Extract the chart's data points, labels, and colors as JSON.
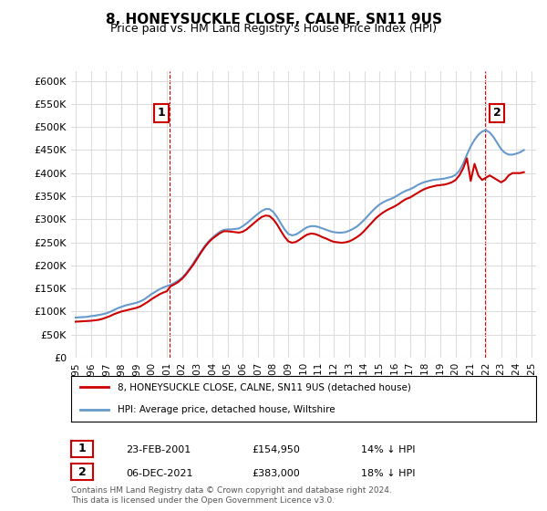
{
  "title": "8, HONEYSUCKLE CLOSE, CALNE, SN11 9US",
  "subtitle": "Price paid vs. HM Land Registry's House Price Index (HPI)",
  "xlabel": "",
  "ylabel": "",
  "ylim": [
    0,
    620000
  ],
  "yticks": [
    0,
    50000,
    100000,
    150000,
    200000,
    250000,
    300000,
    350000,
    400000,
    450000,
    500000,
    550000,
    600000
  ],
  "ytick_labels": [
    "£0",
    "£50K",
    "£100K",
    "£150K",
    "£200K",
    "£250K",
    "£300K",
    "£350K",
    "£400K",
    "£450K",
    "£500K",
    "£550K",
    "£600K"
  ],
  "hpi_color": "#6699cc",
  "price_color": "#cc0000",
  "annotation_color": "#cc0000",
  "marker1_date": 2001.15,
  "marker1_price": 154950,
  "marker1_label": "1",
  "marker2_date": 2021.92,
  "marker2_price": 383000,
  "marker2_label": "2",
  "legend_entry1": "8, HONEYSUCKLE CLOSE, CALNE, SN11 9US (detached house)",
  "legend_entry2": "HPI: Average price, detached house, Wiltshire",
  "table_row1": [
    "1",
    "23-FEB-2001",
    "£154,950",
    "14% ↓ HPI"
  ],
  "table_row2": [
    "2",
    "06-DEC-2021",
    "£383,000",
    "18% ↓ HPI"
  ],
  "footnote": "Contains HM Land Registry data © Crown copyright and database right 2024.\nThis data is licensed under the Open Government Licence v3.0.",
  "background_color": "#ffffff",
  "grid_color": "#dddddd",
  "hpi_data_x": [
    1995,
    1995.25,
    1995.5,
    1995.75,
    1996,
    1996.25,
    1996.5,
    1996.75,
    1997,
    1997.25,
    1997.5,
    1997.75,
    1998,
    1998.25,
    1998.5,
    1998.75,
    1999,
    1999.25,
    1999.5,
    1999.75,
    2000,
    2000.25,
    2000.5,
    2000.75,
    2001,
    2001.25,
    2001.5,
    2001.75,
    2002,
    2002.25,
    2002.5,
    2002.75,
    2003,
    2003.25,
    2003.5,
    2003.75,
    2004,
    2004.25,
    2004.5,
    2004.75,
    2005,
    2005.25,
    2005.5,
    2005.75,
    2006,
    2006.25,
    2006.5,
    2006.75,
    2007,
    2007.25,
    2007.5,
    2007.75,
    2008,
    2008.25,
    2008.5,
    2008.75,
    2009,
    2009.25,
    2009.5,
    2009.75,
    2010,
    2010.25,
    2010.5,
    2010.75,
    2011,
    2011.25,
    2011.5,
    2011.75,
    2012,
    2012.25,
    2012.5,
    2012.75,
    2013,
    2013.25,
    2013.5,
    2013.75,
    2014,
    2014.25,
    2014.5,
    2014.75,
    2015,
    2015.25,
    2015.5,
    2015.75,
    2016,
    2016.25,
    2016.5,
    2016.75,
    2017,
    2017.25,
    2017.5,
    2017.75,
    2018,
    2018.25,
    2018.5,
    2018.75,
    2019,
    2019.25,
    2019.5,
    2019.75,
    2020,
    2020.25,
    2020.5,
    2020.75,
    2021,
    2021.25,
    2021.5,
    2021.75,
    2022,
    2022.25,
    2022.5,
    2022.75,
    2023,
    2023.25,
    2023.5,
    2023.75,
    2024,
    2024.25,
    2024.5
  ],
  "hpi_data_y": [
    87000,
    87500,
    88000,
    88500,
    90000,
    91000,
    92500,
    94000,
    96000,
    99000,
    103000,
    107000,
    110000,
    113000,
    115000,
    117000,
    119000,
    122000,
    126000,
    132000,
    138000,
    143000,
    148000,
    152000,
    155000,
    158000,
    162000,
    167000,
    173000,
    182000,
    193000,
    205000,
    218000,
    230000,
    242000,
    252000,
    260000,
    267000,
    273000,
    277000,
    278000,
    278000,
    279000,
    280000,
    285000,
    291000,
    298000,
    305000,
    312000,
    318000,
    322000,
    322000,
    316000,
    305000,
    291000,
    278000,
    268000,
    265000,
    267000,
    272000,
    278000,
    283000,
    285000,
    285000,
    283000,
    280000,
    277000,
    274000,
    272000,
    271000,
    271000,
    272000,
    275000,
    279000,
    284000,
    291000,
    299000,
    308000,
    317000,
    325000,
    332000,
    337000,
    341000,
    344000,
    348000,
    353000,
    358000,
    362000,
    365000,
    369000,
    374000,
    378000,
    381000,
    383000,
    385000,
    386000,
    387000,
    388000,
    390000,
    392000,
    396000,
    405000,
    420000,
    440000,
    458000,
    472000,
    483000,
    490000,
    493000,
    488000,
    478000,
    465000,
    452000,
    444000,
    440000,
    440000,
    442000,
    445000,
    450000
  ],
  "price_data_x": [
    1995,
    1995.25,
    1995.5,
    1995.75,
    1996,
    1996.25,
    1996.5,
    1996.75,
    1997,
    1997.25,
    1997.5,
    1997.75,
    1998,
    1998.25,
    1998.5,
    1998.75,
    1999,
    1999.25,
    1999.5,
    1999.75,
    2000,
    2000.25,
    2000.5,
    2000.75,
    2001,
    2001.25,
    2001.5,
    2001.75,
    2002,
    2002.25,
    2002.5,
    2002.75,
    2003,
    2003.25,
    2003.5,
    2003.75,
    2004,
    2004.25,
    2004.5,
    2004.75,
    2005,
    2005.25,
    2005.5,
    2005.75,
    2006,
    2006.25,
    2006.5,
    2006.75,
    2007,
    2007.25,
    2007.5,
    2007.75,
    2008,
    2008.25,
    2008.5,
    2008.75,
    2009,
    2009.25,
    2009.5,
    2009.75,
    2010,
    2010.25,
    2010.5,
    2010.75,
    2011,
    2011.25,
    2011.5,
    2011.75,
    2012,
    2012.25,
    2012.5,
    2012.75,
    2013,
    2013.25,
    2013.5,
    2013.75,
    2014,
    2014.25,
    2014.5,
    2014.75,
    2015,
    2015.25,
    2015.5,
    2015.75,
    2016,
    2016.25,
    2016.5,
    2016.75,
    2017,
    2017.25,
    2017.5,
    2017.75,
    2018,
    2018.25,
    2018.5,
    2018.75,
    2019,
    2019.25,
    2019.5,
    2019.75,
    2020,
    2020.25,
    2020.5,
    2020.75,
    2021,
    2021.25,
    2021.5,
    2021.75,
    2022,
    2022.25,
    2022.5,
    2022.75,
    2023,
    2023.25,
    2023.5,
    2023.75,
    2024,
    2024.25,
    2024.5
  ],
  "price_data_y": [
    78000,
    78500,
    79000,
    79500,
    80000,
    81000,
    82000,
    84000,
    87000,
    90000,
    94000,
    97000,
    100000,
    102000,
    104000,
    106000,
    108000,
    111000,
    116000,
    121000,
    127000,
    132000,
    137000,
    141000,
    144000,
    154950,
    159000,
    164000,
    171000,
    180000,
    191000,
    202000,
    215000,
    228000,
    240000,
    250000,
    258000,
    264000,
    270000,
    274000,
    274000,
    273000,
    272000,
    271000,
    273000,
    278000,
    285000,
    292000,
    299000,
    305000,
    308000,
    307000,
    300000,
    289000,
    275000,
    262000,
    252000,
    249000,
    251000,
    256000,
    262000,
    267000,
    269000,
    268000,
    265000,
    261000,
    258000,
    254000,
    251000,
    250000,
    249000,
    250000,
    252000,
    256000,
    261000,
    267000,
    275000,
    284000,
    293000,
    302000,
    309000,
    315000,
    320000,
    324000,
    328000,
    333000,
    339000,
    344000,
    347000,
    352000,
    357000,
    362000,
    366000,
    369000,
    371000,
    373000,
    374000,
    375000,
    377000,
    380000,
    385000,
    395000,
    410000,
    432000,
    383000,
    420000,
    395000,
    385000,
    390000,
    395000,
    390000,
    385000,
    380000,
    385000,
    395000,
    400000,
    400000,
    400000,
    402000
  ]
}
